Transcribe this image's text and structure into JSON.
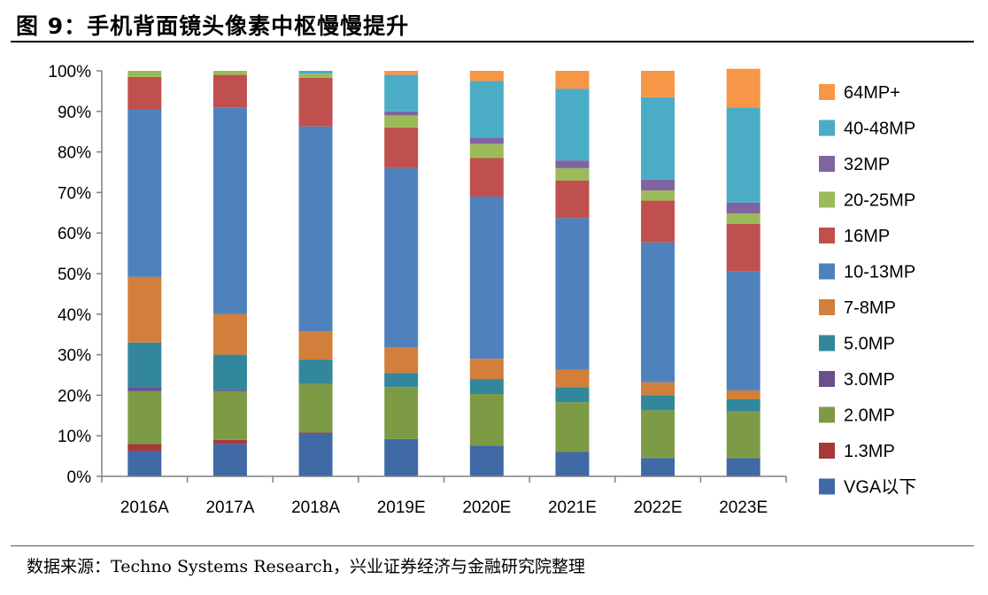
{
  "figure": {
    "title": "图 9：手机背面镜头像素中枢慢慢提升",
    "source": "数据来源：Techno Systems Research，兴业证券经济与金融研究院整理"
  },
  "chart_data": {
    "type": "bar",
    "stacked": true,
    "title": "",
    "xlabel": "",
    "ylabel": "",
    "ylim": [
      0,
      100
    ],
    "yticks": [
      "0%",
      "10%",
      "20%",
      "30%",
      "40%",
      "50%",
      "60%",
      "70%",
      "80%",
      "90%",
      "100%"
    ],
    "grid": false,
    "legend_position": "right",
    "categories": [
      "2016A",
      "2017A",
      "2018A",
      "2019E",
      "2020E",
      "2021E",
      "2022E",
      "2023E"
    ],
    "series": [
      {
        "name": "VGA以下",
        "color": "#3f6aa6",
        "values": [
          6.2,
          8.0,
          10.5,
          9.2,
          7.6,
          6.0,
          4.5,
          4.5
        ]
      },
      {
        "name": "1.3MP",
        "color": "#a5393a",
        "values": [
          1.8,
          1.0,
          0.3,
          0.0,
          0.0,
          0.0,
          0.0,
          0.0
        ]
      },
      {
        "name": "2.0MP",
        "color": "#7d9b45",
        "values": [
          13.0,
          12.0,
          12.0,
          12.8,
          12.7,
          12.3,
          11.8,
          11.5
        ]
      },
      {
        "name": "3.0MP",
        "color": "#6a4f8f",
        "values": [
          1.0,
          0.3,
          0.0,
          0.0,
          0.0,
          0.0,
          0.0,
          0.0
        ]
      },
      {
        "name": "5.0MP",
        "color": "#33879c",
        "values": [
          11.0,
          8.7,
          6.0,
          3.5,
          3.7,
          3.7,
          3.7,
          3.0
        ]
      },
      {
        "name": "7-8MP",
        "color": "#d17f3a",
        "values": [
          16.2,
          10.0,
          7.0,
          6.3,
          5.0,
          4.3,
          3.2,
          2.2
        ]
      },
      {
        "name": "10-13MP",
        "color": "#4f81bd",
        "values": [
          41.3,
          51.0,
          50.5,
          44.2,
          40.0,
          37.4,
          34.5,
          29.3
        ]
      },
      {
        "name": "16MP",
        "color": "#c0504d",
        "values": [
          8.0,
          8.0,
          12.0,
          10.0,
          9.5,
          9.3,
          10.3,
          11.8
        ]
      },
      {
        "name": "20-25MP",
        "color": "#9bbb59",
        "values": [
          1.5,
          1.0,
          1.0,
          3.0,
          3.5,
          3.0,
          2.5,
          2.5
        ]
      },
      {
        "name": "32MP",
        "color": "#8064a2",
        "values": [
          0.0,
          0.0,
          0.0,
          1.0,
          1.5,
          1.9,
          2.7,
          2.7
        ]
      },
      {
        "name": "40-48MP",
        "color": "#4bacc6",
        "values": [
          0.0,
          0.0,
          0.7,
          9.0,
          14.0,
          17.7,
          20.3,
          23.5
        ]
      },
      {
        "name": "64MP+",
        "color": "#f79646",
        "values": [
          0.0,
          0.0,
          0.0,
          1.0,
          2.5,
          4.4,
          6.5,
          9.5
        ]
      }
    ]
  }
}
